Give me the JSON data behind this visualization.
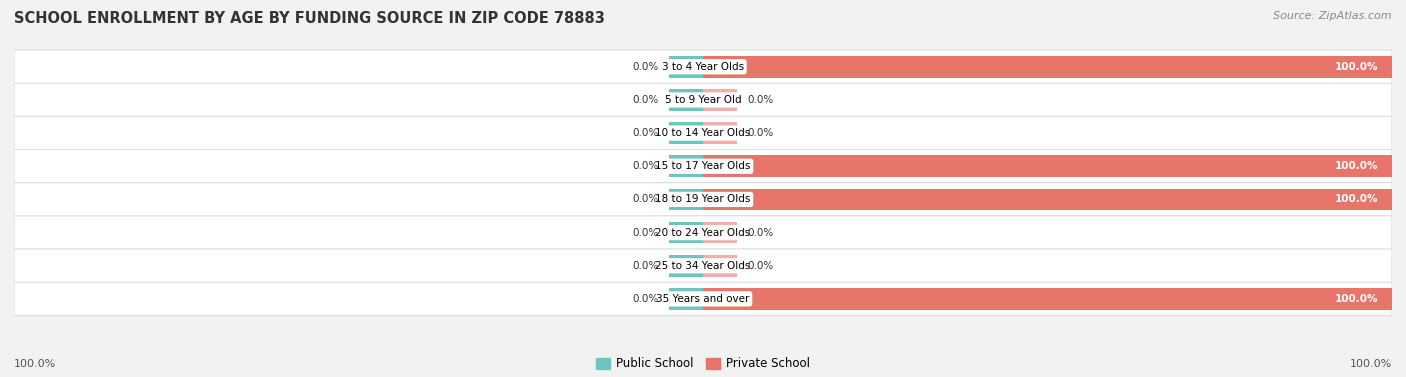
{
  "title": "SCHOOL ENROLLMENT BY AGE BY FUNDING SOURCE IN ZIP CODE 78883",
  "source": "Source: ZipAtlas.com",
  "categories": [
    "3 to 4 Year Olds",
    "5 to 9 Year Old",
    "10 to 14 Year Olds",
    "15 to 17 Year Olds",
    "18 to 19 Year Olds",
    "20 to 24 Year Olds",
    "25 to 34 Year Olds",
    "35 Years and over"
  ],
  "public_values": [
    0.0,
    0.0,
    0.0,
    0.0,
    0.0,
    0.0,
    0.0,
    0.0
  ],
  "private_values": [
    100.0,
    0.0,
    0.0,
    100.0,
    100.0,
    0.0,
    0.0,
    100.0
  ],
  "public_color": "#6EC4BF",
  "private_color": "#E8756A",
  "private_color_light": "#F2AFA9",
  "bg_color": "#F2F2F2",
  "row_bg_color": "#FFFFFF",
  "x_min": -100.0,
  "x_max": 100.0,
  "pub_stub": 5.0,
  "priv_stub": 5.0,
  "left_axis_label": "100.0%",
  "right_axis_label": "100.0%"
}
